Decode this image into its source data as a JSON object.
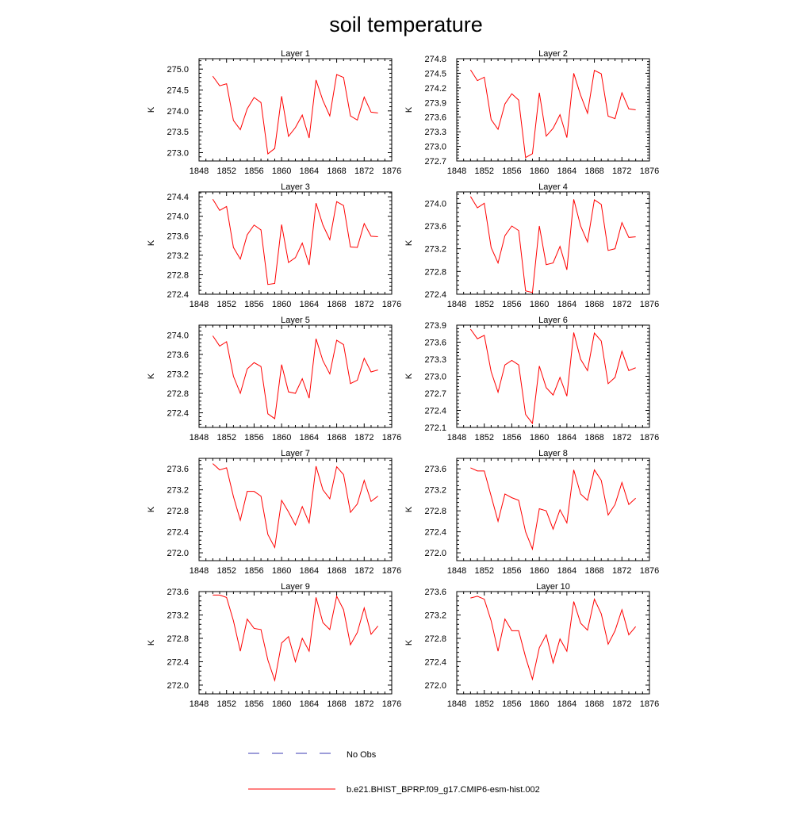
{
  "title": "soil temperature",
  "legend": {
    "items": [
      {
        "label": "No Obs",
        "color": "#3b3bb3",
        "dash": true
      },
      {
        "label": "b.e21.BHIST_BPRP.f09_g17.CMIP6-esm-hist.002",
        "color": "#ff0000",
        "dash": false
      }
    ]
  },
  "chart_data": [
    {
      "type": "line",
      "title": "Layer 1",
      "ylabel": "K",
      "xlim": [
        1848,
        1876
      ],
      "xticks": [
        1848,
        1852,
        1856,
        1860,
        1864,
        1868,
        1872,
        1876
      ],
      "ylim": [
        272.8,
        275.25
      ],
      "yticks": [
        273.0,
        273.5,
        274.0,
        274.5,
        275.0
      ],
      "ydec": 1,
      "series": [
        {
          "color": "#ff0000",
          "x": [
            1850,
            1851,
            1852,
            1853,
            1854,
            1855,
            1856,
            1857,
            1858,
            1859,
            1860,
            1861,
            1862,
            1863,
            1864,
            1865,
            1866,
            1867,
            1868,
            1869,
            1870,
            1871,
            1872,
            1873,
            1874
          ],
          "y": [
            274.83,
            274.6,
            274.65,
            273.77,
            273.55,
            274.05,
            274.32,
            274.2,
            272.97,
            273.1,
            274.35,
            273.39,
            273.6,
            273.9,
            273.35,
            274.74,
            274.25,
            273.88,
            274.87,
            274.8,
            273.88,
            273.78,
            274.33,
            273.97,
            273.95
          ]
        }
      ]
    },
    {
      "type": "line",
      "title": "Layer 2",
      "ylabel": "K",
      "xlim": [
        1848,
        1876
      ],
      "xticks": [
        1848,
        1852,
        1856,
        1860,
        1864,
        1868,
        1872,
        1876
      ],
      "ylim": [
        272.7,
        274.8
      ],
      "yticks": [
        272.7,
        273.0,
        273.3,
        273.6,
        273.9,
        274.2,
        274.5,
        274.8
      ],
      "ydec": 1,
      "series": [
        {
          "color": "#ff0000",
          "x": [
            1850,
            1851,
            1852,
            1853,
            1854,
            1855,
            1856,
            1857,
            1858,
            1859,
            1860,
            1861,
            1862,
            1863,
            1864,
            1865,
            1866,
            1867,
            1868,
            1869,
            1870,
            1871,
            1872,
            1873,
            1874
          ],
          "y": [
            274.57,
            274.35,
            274.42,
            273.55,
            273.35,
            273.87,
            274.08,
            273.95,
            272.77,
            272.85,
            274.1,
            273.21,
            273.37,
            273.65,
            273.18,
            274.5,
            274.05,
            273.68,
            274.56,
            274.49,
            273.62,
            273.57,
            274.1,
            273.77,
            273.75
          ]
        }
      ]
    },
    {
      "type": "line",
      "title": "Layer 3",
      "ylabel": "K",
      "xlim": [
        1848,
        1876
      ],
      "xticks": [
        1848,
        1852,
        1856,
        1860,
        1864,
        1868,
        1872,
        1876
      ],
      "ylim": [
        272.4,
        274.5
      ],
      "yticks": [
        272.4,
        272.8,
        273.2,
        273.6,
        274.0,
        274.4
      ],
      "ydec": 1,
      "series": [
        {
          "color": "#ff0000",
          "x": [
            1850,
            1851,
            1852,
            1853,
            1854,
            1855,
            1856,
            1857,
            1858,
            1859,
            1860,
            1861,
            1862,
            1863,
            1864,
            1865,
            1866,
            1867,
            1868,
            1869,
            1870,
            1871,
            1872,
            1873,
            1874
          ],
          "y": [
            274.35,
            274.12,
            274.2,
            273.36,
            273.12,
            273.62,
            273.82,
            273.72,
            272.6,
            272.62,
            273.83,
            273.05,
            273.15,
            273.45,
            273.0,
            274.27,
            273.82,
            273.52,
            274.3,
            274.22,
            273.37,
            273.36,
            273.85,
            273.59,
            273.58
          ]
        }
      ]
    },
    {
      "type": "line",
      "title": "Layer 4",
      "ylabel": "K",
      "xlim": [
        1848,
        1876
      ],
      "xticks": [
        1848,
        1852,
        1856,
        1860,
        1864,
        1868,
        1872,
        1876
      ],
      "ylim": [
        272.4,
        274.2
      ],
      "yticks": [
        272.4,
        272.8,
        273.2,
        273.6,
        274.0
      ],
      "ydec": 1,
      "series": [
        {
          "color": "#ff0000",
          "x": [
            1850,
            1851,
            1852,
            1853,
            1854,
            1855,
            1856,
            1857,
            1858,
            1859,
            1860,
            1861,
            1862,
            1863,
            1864,
            1865,
            1866,
            1867,
            1868,
            1869,
            1870,
            1871,
            1872,
            1873,
            1874
          ],
          "y": [
            274.12,
            273.92,
            274.0,
            273.22,
            272.95,
            273.43,
            273.6,
            273.52,
            272.46,
            272.43,
            273.6,
            272.92,
            272.95,
            273.24,
            272.83,
            274.07,
            273.6,
            273.32,
            274.06,
            273.98,
            273.17,
            273.2,
            273.66,
            273.4,
            273.41
          ]
        }
      ]
    },
    {
      "type": "line",
      "title": "Layer 5",
      "ylabel": "K",
      "xlim": [
        1848,
        1876
      ],
      "xticks": [
        1848,
        1852,
        1856,
        1860,
        1864,
        1868,
        1872,
        1876
      ],
      "ylim": [
        272.1,
        274.2
      ],
      "yticks": [
        272.4,
        272.8,
        273.2,
        273.6,
        274.0
      ],
      "ydec": 1,
      "series": [
        {
          "color": "#ff0000",
          "x": [
            1850,
            1851,
            1852,
            1853,
            1854,
            1855,
            1856,
            1857,
            1858,
            1859,
            1860,
            1861,
            1862,
            1863,
            1864,
            1865,
            1866,
            1867,
            1868,
            1869,
            1870,
            1871,
            1872,
            1873,
            1874
          ],
          "y": [
            273.98,
            273.77,
            273.86,
            273.15,
            272.8,
            273.3,
            273.43,
            273.35,
            272.38,
            272.28,
            273.39,
            272.83,
            272.8,
            273.1,
            272.7,
            273.92,
            273.47,
            273.2,
            273.89,
            273.8,
            273.0,
            273.07,
            273.52,
            273.24,
            273.28
          ]
        }
      ]
    },
    {
      "type": "line",
      "title": "Layer 6",
      "ylabel": "K",
      "xlim": [
        1848,
        1876
      ],
      "xticks": [
        1848,
        1852,
        1856,
        1860,
        1864,
        1868,
        1872,
        1876
      ],
      "ylim": [
        272.1,
        273.9
      ],
      "yticks": [
        272.1,
        272.4,
        272.7,
        273.0,
        273.3,
        273.6,
        273.9
      ],
      "ydec": 1,
      "series": [
        {
          "color": "#ff0000",
          "x": [
            1850,
            1851,
            1852,
            1853,
            1854,
            1855,
            1856,
            1857,
            1858,
            1859,
            1860,
            1861,
            1862,
            1863,
            1864,
            1865,
            1866,
            1867,
            1868,
            1869,
            1870,
            1871,
            1872,
            1873,
            1874
          ],
          "y": [
            273.83,
            273.66,
            273.72,
            273.08,
            272.72,
            273.2,
            273.28,
            273.2,
            272.33,
            272.17,
            273.18,
            272.8,
            272.67,
            272.98,
            272.65,
            273.77,
            273.3,
            273.1,
            273.76,
            273.62,
            272.87,
            272.98,
            273.44,
            273.1,
            273.15
          ]
        }
      ]
    },
    {
      "type": "line",
      "title": "Layer 7",
      "ylabel": "K",
      "xlim": [
        1848,
        1876
      ],
      "xticks": [
        1848,
        1852,
        1856,
        1860,
        1864,
        1868,
        1872,
        1876
      ],
      "ylim": [
        271.85,
        273.8
      ],
      "yticks": [
        272.0,
        272.4,
        272.8,
        273.2,
        273.6
      ],
      "ydec": 1,
      "series": [
        {
          "color": "#ff0000",
          "x": [
            1850,
            1851,
            1852,
            1853,
            1854,
            1855,
            1856,
            1857,
            1858,
            1859,
            1860,
            1861,
            1862,
            1863,
            1864,
            1865,
            1866,
            1867,
            1868,
            1869,
            1870,
            1871,
            1872,
            1873,
            1874
          ],
          "y": [
            273.7,
            273.58,
            273.62,
            273.07,
            272.62,
            273.17,
            273.17,
            273.08,
            272.35,
            272.1,
            273.0,
            272.78,
            272.53,
            272.88,
            272.57,
            273.65,
            273.2,
            273.03,
            273.64,
            273.49,
            272.77,
            272.93,
            273.38,
            272.98,
            273.08
          ]
        }
      ]
    },
    {
      "type": "line",
      "title": "Layer 8",
      "ylabel": "K",
      "xlim": [
        1848,
        1876
      ],
      "xticks": [
        1848,
        1852,
        1856,
        1860,
        1864,
        1868,
        1872,
        1876
      ],
      "ylim": [
        271.85,
        273.8
      ],
      "yticks": [
        272.0,
        272.4,
        272.8,
        273.2,
        273.6
      ],
      "ydec": 1,
      "series": [
        {
          "color": "#ff0000",
          "x": [
            1850,
            1851,
            1852,
            1853,
            1854,
            1855,
            1856,
            1857,
            1858,
            1859,
            1860,
            1861,
            1862,
            1863,
            1864,
            1865,
            1866,
            1867,
            1868,
            1869,
            1870,
            1871,
            1872,
            1873,
            1874
          ],
          "y": [
            273.62,
            273.56,
            273.56,
            273.08,
            272.6,
            273.12,
            273.05,
            273.0,
            272.4,
            272.07,
            272.84,
            272.8,
            272.45,
            272.82,
            272.57,
            273.58,
            273.12,
            273.0,
            273.58,
            273.38,
            272.72,
            272.92,
            273.34,
            272.92,
            273.04
          ]
        }
      ]
    },
    {
      "type": "line",
      "title": "Layer 9",
      "ylabel": "K",
      "xlim": [
        1848,
        1876
      ],
      "xticks": [
        1848,
        1852,
        1856,
        1860,
        1864,
        1868,
        1872,
        1876
      ],
      "ylim": [
        271.85,
        273.6
      ],
      "yticks": [
        272.0,
        272.4,
        272.8,
        273.2,
        273.6
      ],
      "ydec": 1,
      "series": [
        {
          "color": "#ff0000",
          "x": [
            1850,
            1851,
            1852,
            1853,
            1854,
            1855,
            1856,
            1857,
            1858,
            1859,
            1860,
            1861,
            1862,
            1863,
            1864,
            1865,
            1866,
            1867,
            1868,
            1869,
            1870,
            1871,
            1872,
            1873,
            1874
          ],
          "y": [
            273.54,
            273.54,
            273.5,
            273.1,
            272.58,
            273.13,
            272.97,
            272.95,
            272.43,
            272.08,
            272.72,
            272.83,
            272.4,
            272.8,
            272.58,
            273.5,
            273.07,
            272.95,
            273.52,
            273.29,
            272.69,
            272.9,
            273.32,
            272.87,
            273.01
          ]
        }
      ]
    },
    {
      "type": "line",
      "title": "Layer 10",
      "ylabel": "K",
      "xlim": [
        1848,
        1876
      ],
      "xticks": [
        1848,
        1852,
        1856,
        1860,
        1864,
        1868,
        1872,
        1876
      ],
      "ylim": [
        271.85,
        273.6
      ],
      "yticks": [
        272.0,
        272.4,
        272.8,
        273.2,
        273.6
      ],
      "ydec": 1,
      "series": [
        {
          "color": "#ff0000",
          "x": [
            1850,
            1851,
            1852,
            1853,
            1854,
            1855,
            1856,
            1857,
            1858,
            1859,
            1860,
            1861,
            1862,
            1863,
            1864,
            1865,
            1866,
            1867,
            1868,
            1869,
            1870,
            1871,
            1872,
            1873,
            1874
          ],
          "y": [
            273.49,
            273.52,
            273.47,
            273.1,
            272.58,
            273.13,
            272.93,
            272.93,
            272.48,
            272.1,
            272.64,
            272.86,
            272.38,
            272.79,
            272.58,
            273.43,
            273.06,
            272.94,
            273.47,
            273.22,
            272.7,
            272.93,
            273.29,
            272.86,
            273.0
          ]
        }
      ]
    }
  ]
}
